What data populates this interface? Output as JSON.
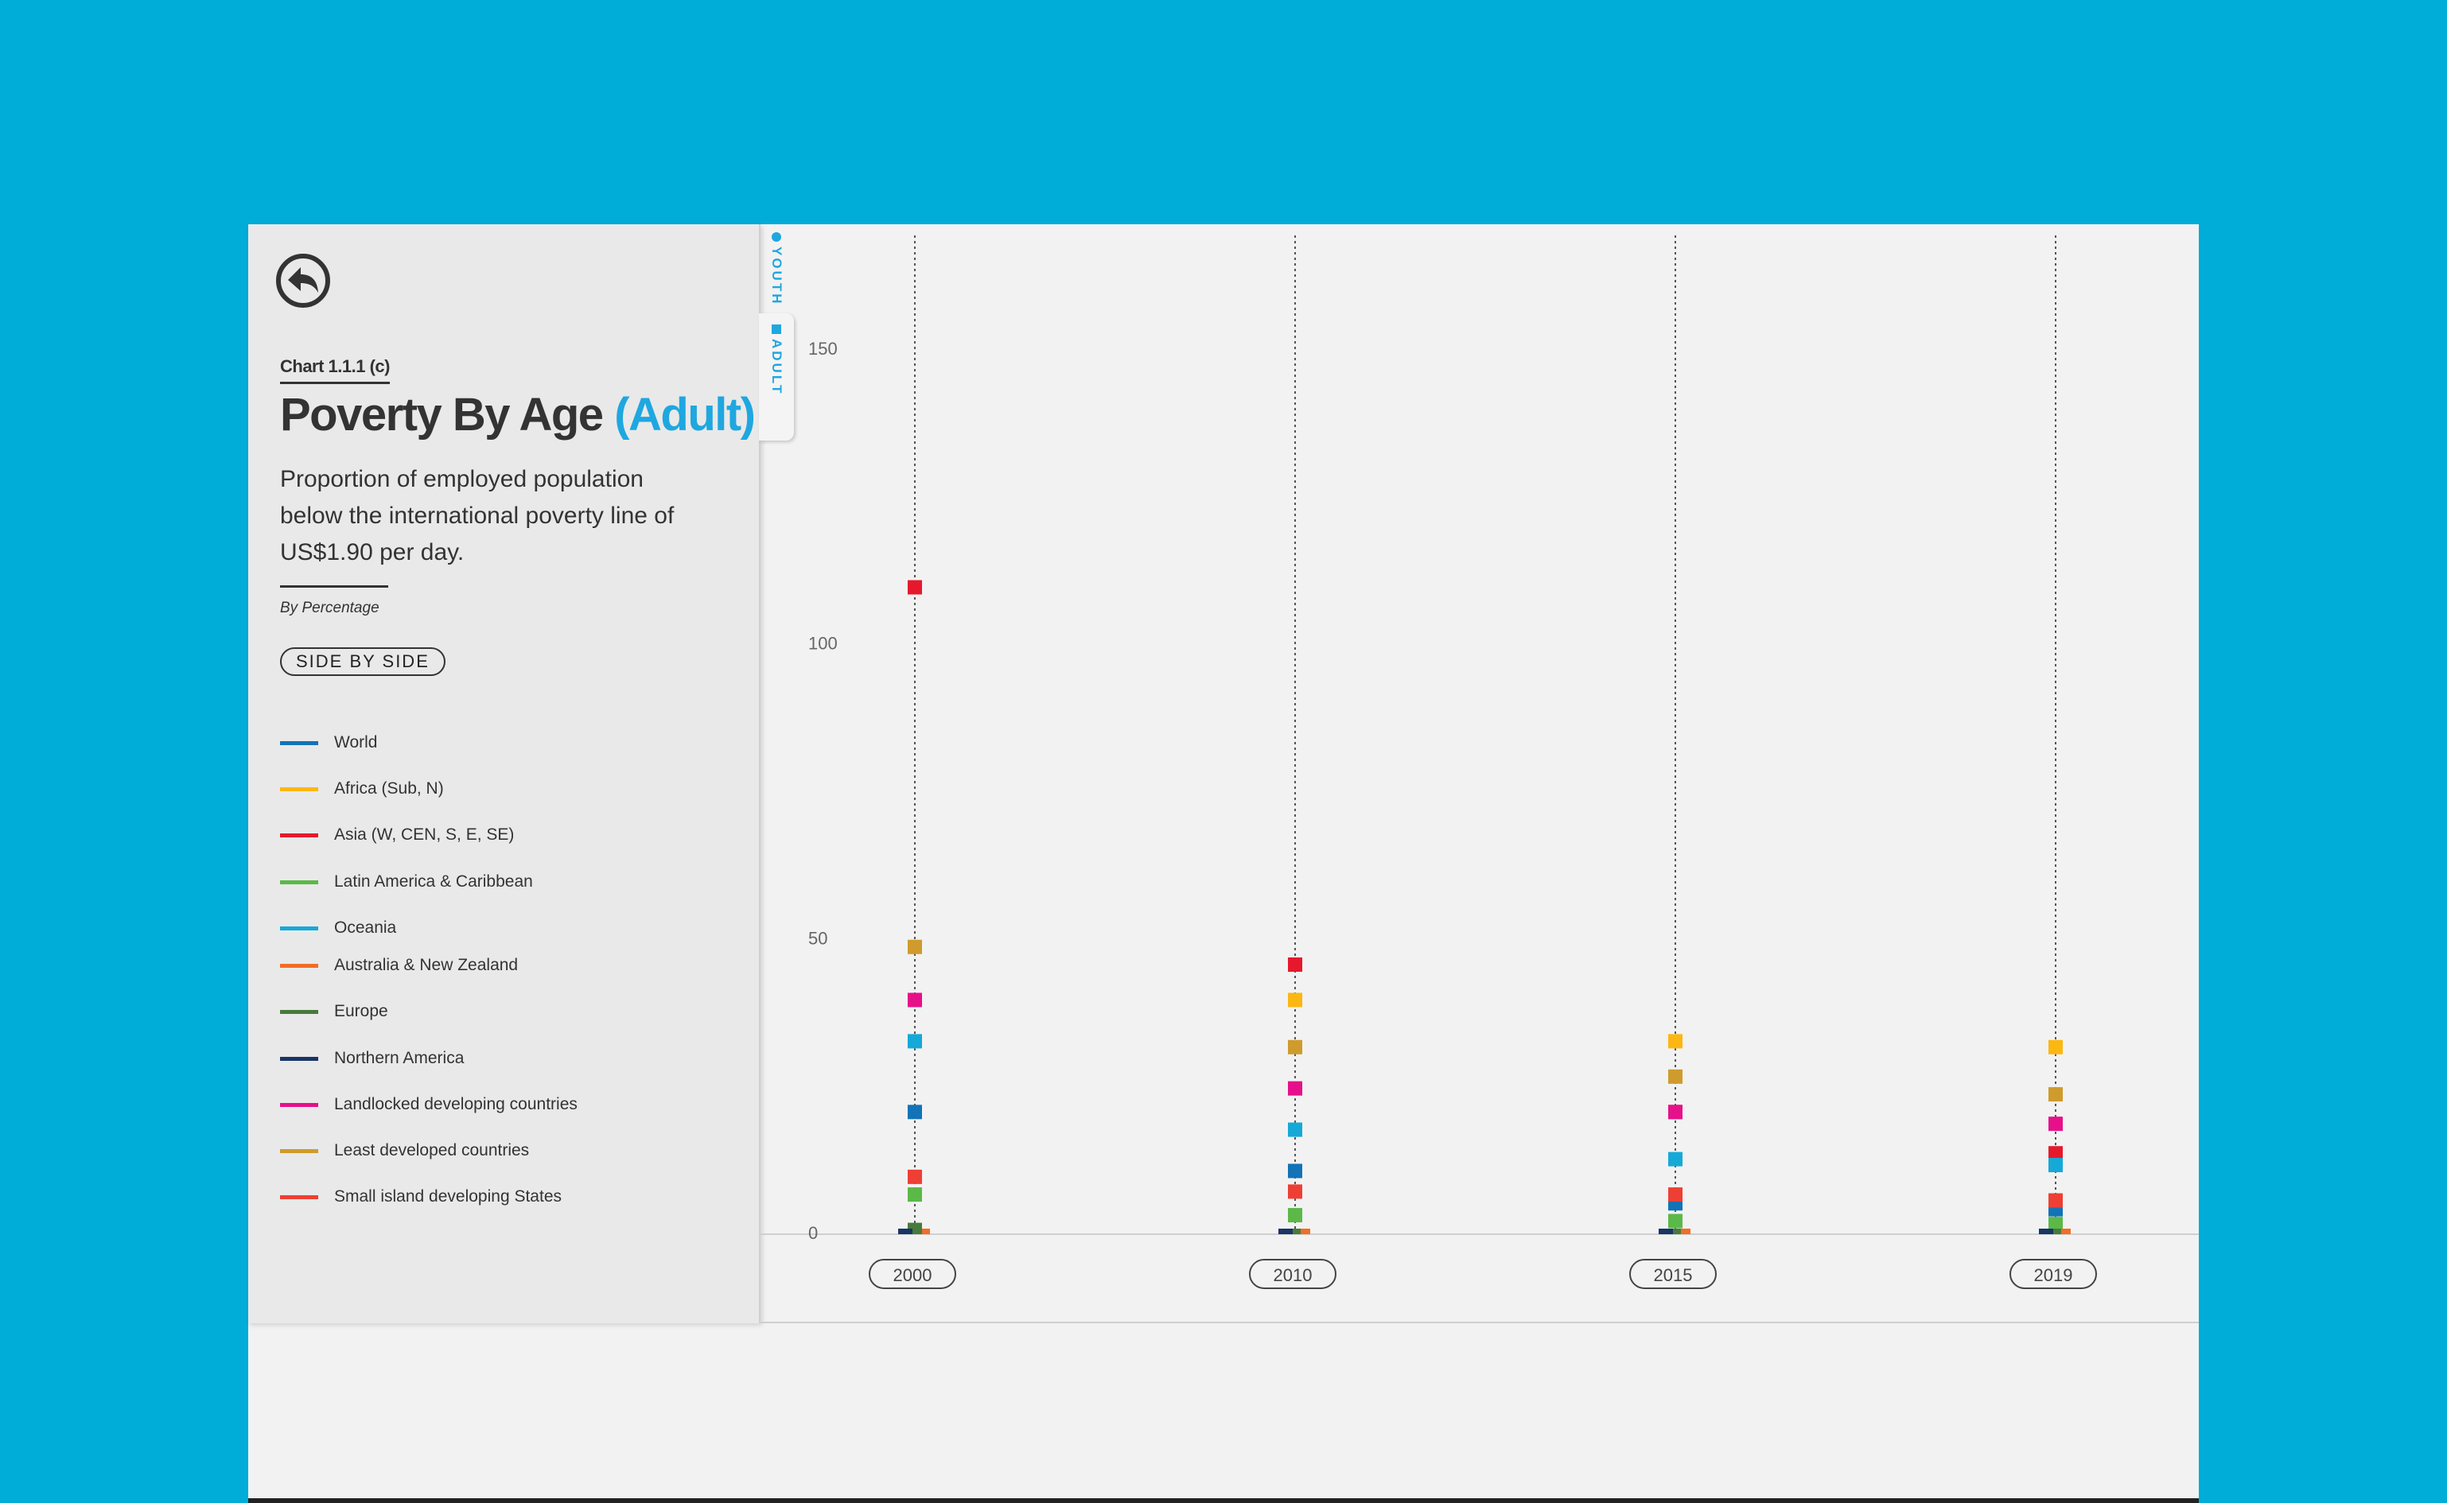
{
  "header": {
    "chart_number": "Chart 1.1.1 (c)",
    "title_main": "Poverty By Age",
    "title_accent": "(Adult)",
    "subtitle": "Proportion of employed population below the international poverty line of US$1.90 per day.",
    "unit": "By Percentage",
    "side_by_side_label": "SIDE BY SIDE",
    "back_icon": "back-arrow-icon"
  },
  "tabs": {
    "youth_label": "YOUTH",
    "adult_label": "ADULT"
  },
  "colors": {
    "background": "#00acd8",
    "accent": "#1fa7e0"
  },
  "legend": [
    {
      "label": "World",
      "color": "#1273b7"
    },
    {
      "label": "Africa (Sub, N)",
      "color": "#fcb712"
    },
    {
      "label": "Asia (W, CEN, S, E, SE)",
      "color": "#e6192c"
    },
    {
      "label": "Latin America & Caribbean",
      "color": "#5bb947"
    },
    {
      "label": "Oceania",
      "color": "#15a9d8"
    },
    {
      "label": "Australia & New Zealand",
      "color": "#f36d25"
    },
    {
      "label": "Europe",
      "color": "#487a3c"
    },
    {
      "label": "Northern America",
      "color": "#183566"
    },
    {
      "label": "Landlocked developing countries",
      "color": "#e6118a"
    },
    {
      "label": "Least developed countries",
      "color": "#cf9b2c"
    },
    {
      "label": "Small island developing States",
      "color": "#ee3f35"
    }
  ],
  "chart_data": {
    "type": "scatter",
    "x": [
      "2000",
      "2010",
      "2015",
      "2019"
    ],
    "ylim": [
      0,
      170
    ],
    "yticks": [
      0,
      50,
      100,
      150
    ],
    "grid": false,
    "series": [
      {
        "name": "World",
        "values": [
          21,
          11,
          5.5,
          4.5
        ]
      },
      {
        "name": "Africa (Sub, N)",
        "values": [
          0,
          40,
          33,
          32
        ]
      },
      {
        "name": "Asia (W, CEN, S, E, SE)",
        "values": [
          110,
          46,
          21,
          14
        ]
      },
      {
        "name": "Latin America & Caribbean",
        "values": [
          7,
          3.5,
          2.5,
          2
        ]
      },
      {
        "name": "Oceania",
        "values": [
          33,
          18,
          13,
          12
        ]
      },
      {
        "name": "Australia & New Zealand",
        "values": [
          0,
          0,
          0,
          0
        ]
      },
      {
        "name": "Europe",
        "values": [
          1,
          0,
          0,
          0
        ]
      },
      {
        "name": "Northern America",
        "values": [
          0,
          0,
          0,
          0
        ]
      },
      {
        "name": "Landlocked developing countries",
        "values": [
          40,
          25,
          21,
          19
        ]
      },
      {
        "name": "Least developed countries",
        "values": [
          49,
          32,
          27,
          24
        ]
      },
      {
        "name": "Small island developing States",
        "values": [
          10,
          7.5,
          7,
          6
        ]
      }
    ]
  }
}
